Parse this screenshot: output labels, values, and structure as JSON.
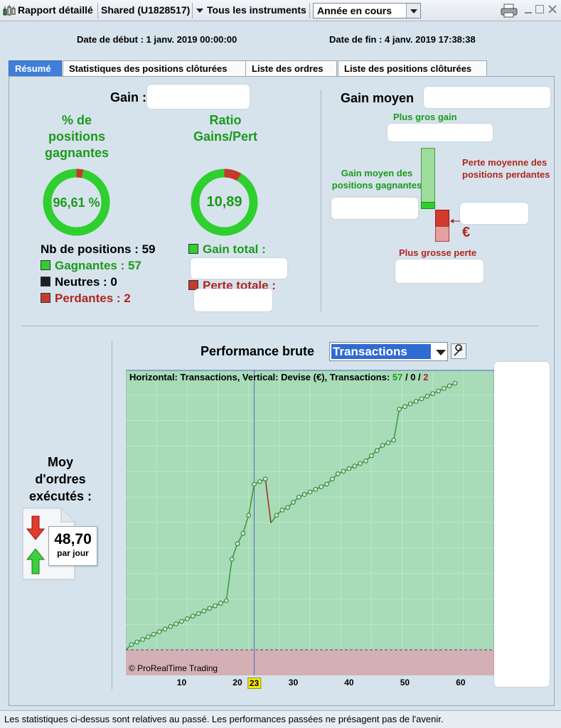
{
  "toolbar": {
    "report_title": "Rapport détaillé",
    "account": "Shared (U1828517)",
    "instruments": "Tous les instruments",
    "period": "Année en cours"
  },
  "header": {
    "start_date": "Date de début : 1 janv. 2019 00:00:00",
    "end_date": "Date de fin : 4 janv. 2019 17:38:38"
  },
  "tabs": [
    {
      "label": "Résumé",
      "active": true
    },
    {
      "label": "Statistiques des positions clôturées",
      "active": false
    },
    {
      "label": "Liste des ordres",
      "active": false
    },
    {
      "label": "Liste des positions clôturées",
      "active": false
    }
  ],
  "summary": {
    "gain_label": "Gain :",
    "win_pct_title": "% de positions gagnantes",
    "win_pct_value": "96,61 %",
    "win_pct_fraction": 0.9661,
    "ratio_title": "Ratio Gains/Pert",
    "ratio_value": "10,89",
    "ratio_fraction": 0.9159,
    "nb_positions": "Nb de positions : 59",
    "winners": "Gagnantes : 57",
    "neutral": "Neutres : 0",
    "losers": "Perdantes : 2",
    "gain_total": "Gain total :",
    "perte_totale": "Perte totale :"
  },
  "gain_moyen": {
    "title": "Gain moyen",
    "biggest_gain": "Plus gros gain",
    "avg_win": "Gain moyen des positions gagnantes",
    "avg_loss": "Perte moyenne des positions perdantes",
    "biggest_loss": "Plus grosse perte",
    "currency_symbol": "€"
  },
  "orders": {
    "label": "Moy d'ordres exécutés :",
    "value": "48,70",
    "unit": "par jour"
  },
  "performance": {
    "title": "Performance brute",
    "mode": "Transactions",
    "legend_prefix": "Horizontal: Transactions, Vertical: Devise (€), Transactions: ",
    "legend_win": "57",
    "legend_sep1": " / ",
    "legend_neutral": "0",
    "legend_sep2": " / ",
    "legend_loss": "2",
    "copyright": "© ProRealTime Trading",
    "highlight_tick": "23"
  },
  "chart_data": {
    "type": "line",
    "xlabel": "",
    "ylabel": "",
    "x_ticks": [
      10,
      20,
      30,
      40,
      50,
      60
    ],
    "highlighted_x": 23,
    "xlim": [
      0,
      66
    ],
    "ylim": [
      0,
      100
    ],
    "x": [
      1,
      2,
      3,
      4,
      5,
      6,
      7,
      8,
      9,
      10,
      11,
      12,
      13,
      14,
      15,
      16,
      17,
      18,
      19,
      20,
      21,
      22,
      23,
      24,
      25,
      26,
      27,
      28,
      29,
      30,
      31,
      32,
      33,
      34,
      35,
      36,
      37,
      38,
      39,
      40,
      41,
      42,
      43,
      44,
      45,
      46,
      47,
      48,
      49,
      50,
      51,
      52,
      53,
      54,
      55,
      56,
      57,
      58,
      59
    ],
    "values": [
      2,
      3,
      4,
      5,
      6,
      7,
      8,
      9,
      10,
      11,
      12,
      13,
      14,
      15,
      16,
      17,
      18,
      19,
      35,
      41,
      45,
      52,
      64,
      65,
      66,
      49,
      52,
      54,
      55,
      57,
      59,
      60,
      61,
      62,
      63,
      64,
      66,
      68,
      69,
      70,
      71,
      72,
      73,
      75,
      77,
      79,
      80,
      81,
      93,
      94,
      95,
      96,
      97,
      98,
      99,
      100,
      101,
      102,
      103
    ],
    "series_colors": {
      "gain": "#2a9a2a",
      "loss": "#a02020",
      "marker": "#2a7a2a"
    },
    "grid": true
  },
  "colors": {
    "green": "#1c9a1c",
    "red": "#b3261e",
    "accent_blue": "#3f7fd9"
  },
  "footer": {
    "text": "Les statistiques ci-dessus sont relatives au passé. Les performances passées ne présagent pas de l'avenir."
  }
}
